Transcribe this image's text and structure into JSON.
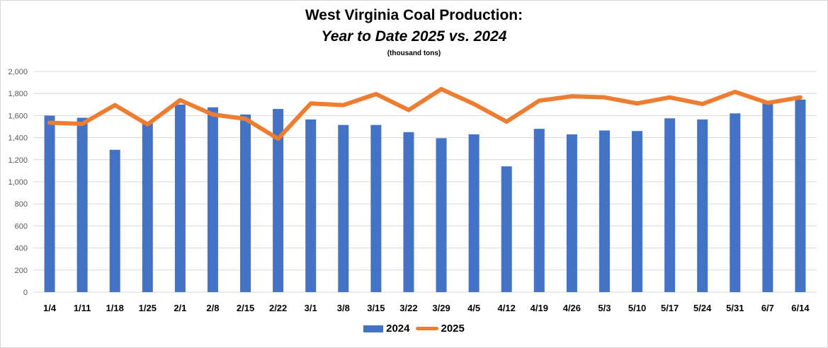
{
  "colors": {
    "bar": "#4472c4",
    "line": "#ed7d31",
    "grid": "#d9d9d9"
  },
  "chart_data": {
    "type": "bar",
    "title": "West Virginia Coal Production:",
    "subtitle": "Year to Date 2025 vs. 2024",
    "unit_note": "(thousand tons)",
    "xlabel": "",
    "ylabel": "",
    "ylim": [
      0,
      2000
    ],
    "yticks": [
      "0",
      "200",
      "400",
      "600",
      "800",
      "1,000",
      "1,200",
      "1,400",
      "1,600",
      "1,800",
      "2,000"
    ],
    "grid": true,
    "legend_position": "bottom",
    "categories": [
      "1/4",
      "1/11",
      "1/18",
      "1/25",
      "2/1",
      "2/8",
      "2/15",
      "2/22",
      "3/1",
      "3/8",
      "3/15",
      "3/22",
      "3/29",
      "4/5",
      "4/12",
      "4/19",
      "4/26",
      "5/3",
      "5/10",
      "5/17",
      "5/24",
      "5/31",
      "6/7",
      "6/14"
    ],
    "series": [
      {
        "name": "2024",
        "type": "bar",
        "values": [
          1600,
          1580,
          1290,
          1530,
          1700,
          1675,
          1610,
          1660,
          1565,
          1515,
          1515,
          1450,
          1395,
          1430,
          1140,
          1480,
          1430,
          1465,
          1460,
          1575,
          1565,
          1620,
          1710,
          1745
        ]
      },
      {
        "name": "2025",
        "type": "line",
        "values": [
          1535,
          1525,
          1695,
          1520,
          1740,
          1610,
          1570,
          1390,
          1710,
          1695,
          1795,
          1650,
          1840,
          1705,
          1545,
          1735,
          1775,
          1765,
          1710,
          1765,
          1705,
          1815,
          1715,
          1765
        ]
      }
    ]
  }
}
